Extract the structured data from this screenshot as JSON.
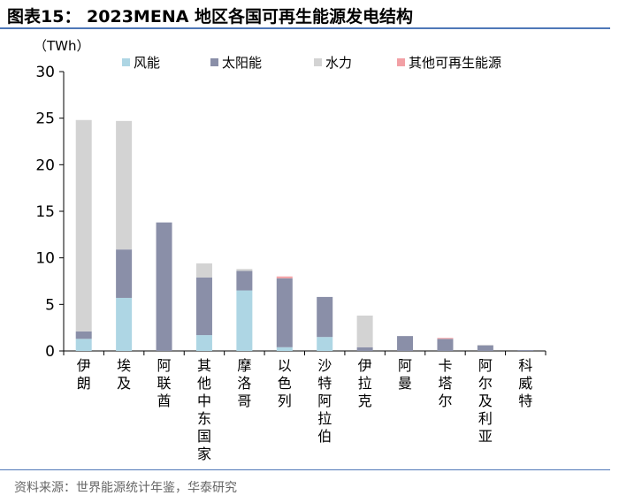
{
  "header": {
    "title": "图表15： 2023MENA 地区各国可再生能源发电结构"
  },
  "footer": {
    "source": "资料来源：世界能源统计年鉴，华泰研究"
  },
  "colors": {
    "rule": "#4f78b8",
    "axis": "#000000"
  },
  "chart_data": {
    "type": "bar",
    "stacked": true,
    "title": "2023MENA 地区各国可再生能源发电结构",
    "ylabel": "（TWh）",
    "ylim": [
      0,
      30
    ],
    "yticks": [
      "0",
      "5",
      "10",
      "15",
      "20",
      "25",
      "30"
    ],
    "grid": false,
    "legend_position": "top",
    "categories": [
      "伊朗",
      "埃及",
      "阿联酋",
      "其他中东国家",
      "摩洛哥",
      "以色列",
      "沙特阿拉伯",
      "伊拉克",
      "阿曼",
      "卡塔尔",
      "阿尔及利亚",
      "科威特"
    ],
    "series": [
      {
        "name": "风能",
        "color": "#aed6e4",
        "values": [
          1.3,
          5.7,
          0.0,
          1.7,
          6.5,
          0.4,
          1.5,
          0.0,
          0.0,
          0.0,
          0.0,
          0.0
        ]
      },
      {
        "name": "太阳能",
        "color": "#8a8fa8",
        "values": [
          0.8,
          5.2,
          13.8,
          6.2,
          2.1,
          7.4,
          4.3,
          0.4,
          1.6,
          1.3,
          0.6,
          0.1
        ]
      },
      {
        "name": "水力",
        "color": "#d3d3d3",
        "values": [
          22.7,
          13.8,
          0.0,
          1.5,
          0.2,
          0.0,
          0.0,
          3.4,
          0.0,
          0.0,
          0.05,
          0.0
        ]
      },
      {
        "name": "其他可再生能源",
        "color": "#f2a0a5",
        "values": [
          0.0,
          0.0,
          0.0,
          0.0,
          0.0,
          0.2,
          0.0,
          0.0,
          0.0,
          0.1,
          0.0,
          0.0
        ]
      }
    ]
  }
}
